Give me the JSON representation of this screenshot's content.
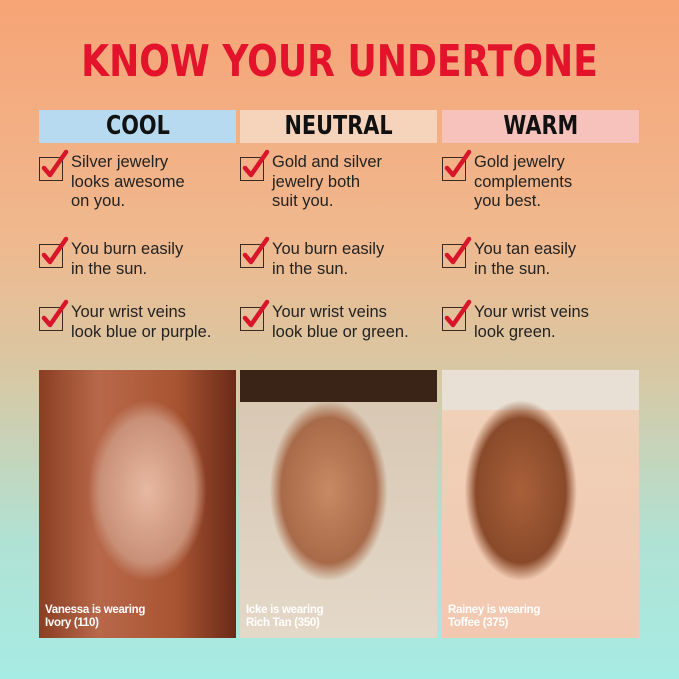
{
  "title": "KNOW YOUR UNDERTONE",
  "columns": [
    {
      "name": "COOL",
      "color": "#b8daf0",
      "items": [
        "Silver jewelry looks awesome on you.",
        "You burn easily in the sun.",
        "Your wrist veins look blue or purple."
      ],
      "caption": [
        "Vanessa is wearing",
        "Ivory (110)"
      ]
    },
    {
      "name": "NEUTRAL",
      "color": "#f6d4bc",
      "items": [
        "Gold and silver jewelry both suit you.",
        "You burn easily in the sun.",
        "Your wrist veins look blue or green."
      ],
      "caption": [
        "Icke is wearing",
        "Rich Tan (350)"
      ]
    },
    {
      "name": "WARM",
      "color": "#f8c2bc",
      "items": [
        "Gold jewelry complements you best.",
        "You tan easily in the sun.",
        "Your wrist veins look green."
      ],
      "caption": [
        "Rainey is wearing",
        "Toffee (375)"
      ]
    }
  ],
  "colors": {
    "accent": "#e4132c",
    "check": "#d8152a"
  },
  "icons": {
    "check": "checked-checkbox-icon"
  }
}
